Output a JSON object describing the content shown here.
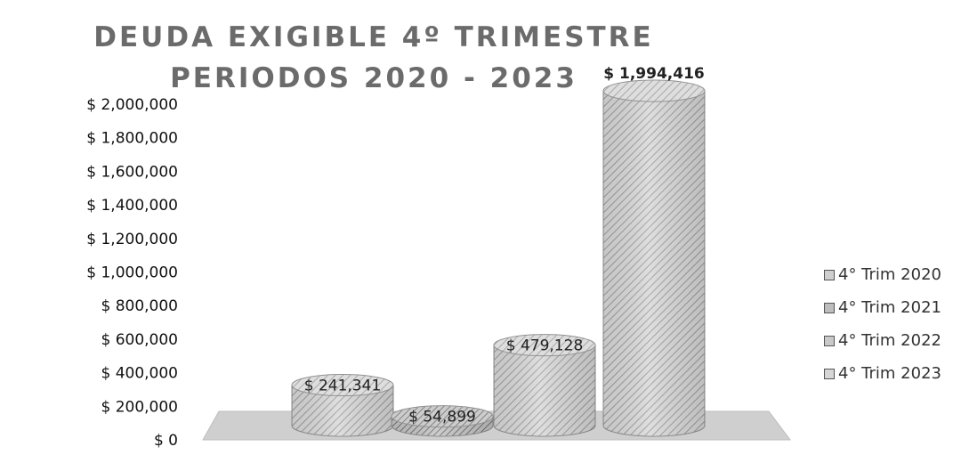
{
  "chart_data": {
    "type": "bar",
    "title": "DEUDA EXIGIBLE 4º TRIMESTRE",
    "subtitle": "PERIODOS 2020 - 2023",
    "categories": [
      "4° Trim 2020",
      "4° Trim 2021",
      "4° Trim 2022",
      "4° Trim 2023"
    ],
    "series": [
      {
        "name": "4° Trim 2020",
        "value": 241341,
        "label": "$ 241,341",
        "color": "#cfcfcf"
      },
      {
        "name": "4° Trim 2021",
        "value": 54899,
        "label": "$ 54,899",
        "color": "#bdbdbd"
      },
      {
        "name": "4° Trim 2022",
        "value": 479128,
        "label": "$ 479,128",
        "color": "#c9c9c9"
      },
      {
        "name": "4° Trim 2023",
        "value": 1994416,
        "label": "$ 1,994,416",
        "color": "#d6d6d6"
      }
    ],
    "ylim": [
      0,
      2000000
    ],
    "yticks": [
      {
        "value": 0,
        "label": "$ 0"
      },
      {
        "value": 200000,
        "label": "$ 200,000"
      },
      {
        "value": 400000,
        "label": "$ 400,000"
      },
      {
        "value": 600000,
        "label": "$ 600,000"
      },
      {
        "value": 800000,
        "label": "$ 800,000"
      },
      {
        "value": 1000000,
        "label": "$ 1,000,000"
      },
      {
        "value": 1200000,
        "label": "$ 1,200,000"
      },
      {
        "value": 1400000,
        "label": "$ 1,400,000"
      },
      {
        "value": 1600000,
        "label": "$ 1,600,000"
      },
      {
        "value": 1800000,
        "label": "$ 1,800,000"
      },
      {
        "value": 2000000,
        "label": "$ 2,000,000"
      }
    ],
    "xlabel": "",
    "ylabel": "",
    "grid": false,
    "legend": "right",
    "style": "3d-cylinder"
  }
}
